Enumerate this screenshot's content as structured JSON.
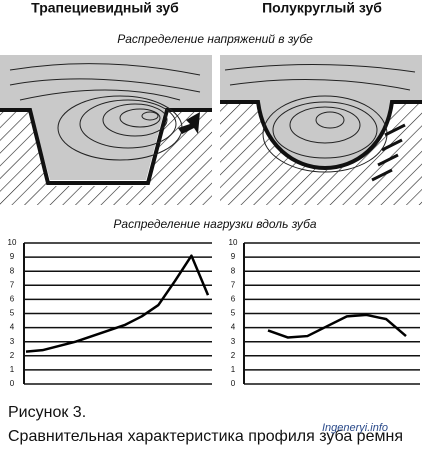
{
  "headers": [
    "Трапециевидный зуб",
    "Полукруглый зуб"
  ],
  "stress_caption": "Распределение напряжений в зубе",
  "load_caption": "Распределение нагрузки вдоль зуба",
  "figure": {
    "number": "Рисунок 3.",
    "caption": "Сравнительная характеристика профиля зуба ремня"
  },
  "watermark": "Ingeneryi.info",
  "chart_data": [
    {
      "type": "line",
      "categories": [
        null,
        null,
        null,
        null,
        null,
        null,
        null,
        null,
        null,
        null,
        null,
        null
      ],
      "values": [
        2.3,
        2.4,
        2.7,
        3.0,
        3.4,
        3.8,
        4.2,
        4.8,
        5.6,
        7.3,
        9.1,
        6.3
      ],
      "color": "#000000",
      "ylim": [
        0,
        10
      ],
      "yticks": [
        0,
        1,
        2,
        3,
        4,
        5,
        6,
        7,
        8,
        9,
        10
      ],
      "grid": true
    },
    {
      "type": "line",
      "categories": [
        null,
        null,
        null,
        null,
        null,
        null,
        null,
        null
      ],
      "values": [
        3.8,
        3.3,
        3.4,
        4.1,
        4.8,
        4.9,
        4.6,
        3.4
      ],
      "color": "#000000",
      "ylim": [
        0,
        10
      ],
      "yticks": [
        0,
        1,
        2,
        3,
        4,
        5,
        6,
        7,
        8,
        9,
        10
      ],
      "grid": true
    }
  ]
}
